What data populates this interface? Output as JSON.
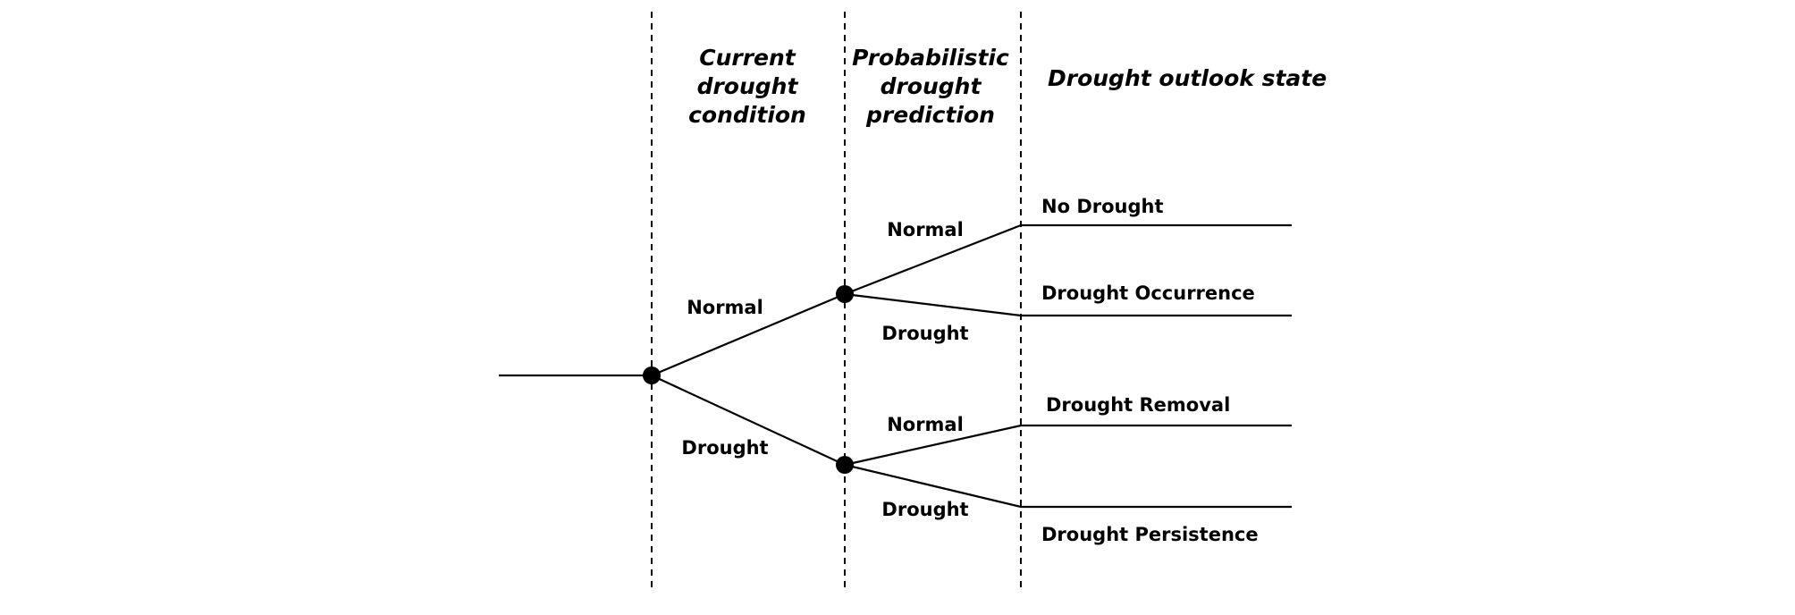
{
  "headers": {
    "current": [
      "Current",
      "drought",
      "condition"
    ],
    "prediction": [
      "Probabilistic",
      "drought",
      "prediction"
    ],
    "outlook": "Drought outlook state"
  },
  "branches": {
    "current": [
      "Normal",
      "Drought"
    ],
    "after_normal": [
      "Normal",
      "Drought"
    ],
    "after_drought": [
      "Normal",
      "Drought"
    ]
  },
  "outcomes": [
    "No Drought",
    "Drought Occurrence",
    "Drought Removal",
    "Drought Persistence"
  ]
}
